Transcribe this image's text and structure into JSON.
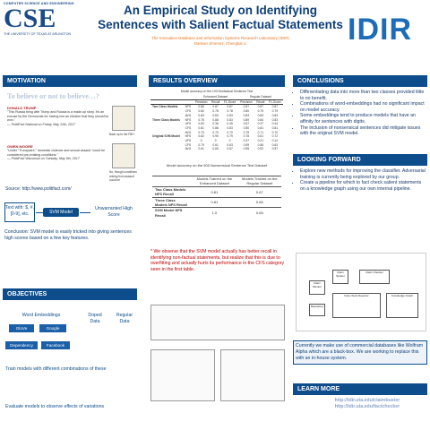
{
  "header": {
    "dept_line": "COMPUTER SCIENCE AND ENGINEERING",
    "cse_logo": "CSE",
    "univ_line": "THE UNIVERSITY OF TEXAS AT ARLINGTON",
    "title_line1": "An Empirical Study on Identifying",
    "title_line2": "Sentences with Salient Factual Statements",
    "lab": "The Innovative Database and Information Systems Research Laboratory (IDIR)",
    "authors": "Damian Jimenez, Chengkai Li",
    "idir_logo": "IDIR"
  },
  "motivation": {
    "header": "MOTIVATION",
    "big_line": "To believe or not to believe…?",
    "q1_name": "DONALD TRUMP",
    "q1_text": "\"This Russia thing with Trump and Russia is a made-up story. It's an excuse by the Democrats for having lost an election that they should've won.\"",
    "q1_src": "— PolitiFact National on Friday, May 12th, 2017",
    "q1_badge": "Back up to the FBI?",
    "q2_name": "GWEN MOORE",
    "q2_text": "\"Under \"Trumpcare,\" domestic violence and sexual assault \"could be considered pre-existing conditions.\"",
    "q2_src": "— PolitiFact Wisconsin on Tuesday, May 9th, 2017",
    "q2_badge": "No, though conditions arising from assault could be",
    "source": "Source: http://www.politifact.com/",
    "model_in": "Text with: $, #, [0-9], etc.",
    "model": "SVM Model",
    "model_out": "Unwarranted High Score",
    "conclusion": "Conclusion: SVM model is easily tricked into giving sentences high scores based on a few key features."
  },
  "objectives": {
    "header": "OBJECTIVES",
    "word_emb": "Word Embeddings",
    "glove": "GloVe",
    "google": "Google",
    "dependency": "Dependency",
    "facebook": "Facebook",
    "doped": "Doped Data",
    "regular": "Regular Data",
    "train": "Train models with different combinations of these",
    "evaluate": "Evaluate models to observe effects of variations"
  },
  "results": {
    "header": "RESULTS OVERVIEW",
    "table1_caption": "Model accuracy on the 100 Nonfactual Sentence Test",
    "table1_groups": [
      "Enhanced Dataset",
      "Regular Dataset"
    ],
    "table1_cols": [
      "Precision",
      "Recall",
      "F1-Score",
      "Precision",
      "Recall",
      "F1-Score"
    ],
    "table1_rows": [
      [
        "Two Class Models",
        "NFS",
        "0.86",
        "0.87",
        "0.87",
        "0.87",
        "0.87",
        "0.87"
      ],
      [
        "",
        "CFS",
        "0.80",
        "0.78",
        "0.78",
        "0.80",
        "0.79",
        "0.79"
      ],
      [
        "",
        "AVG",
        "0.83",
        "0.83",
        "0.83",
        "0.83",
        "0.83",
        "0.83"
      ],
      [
        "Three Class Models",
        "NFS",
        "0.78",
        "0.88",
        "0.83",
        "0.89",
        "0.84",
        "0.83"
      ],
      [
        "",
        "UFS",
        "0.60",
        "0.36",
        "0.45",
        "0.57",
        "0.37",
        "0.44"
      ],
      [
        "",
        "CFS",
        "0.81",
        "0.88",
        "0.83",
        "0.80",
        "0.81",
        "0.81"
      ],
      [
        "",
        "AVG",
        "0.73",
        "0.70",
        "0.70",
        "0.75",
        "0.71",
        "0.70"
      ],
      [
        "Original SVM Model",
        "NFS",
        "0.82",
        "0.90",
        "0.79",
        "0.78",
        "0.61",
        "0.72"
      ],
      [
        "",
        "UFS",
        "0",
        "0",
        "0",
        "0.37",
        "0.21",
        "0.14"
      ],
      [
        "",
        "CFS",
        "0.79",
        "0.61",
        "0.63",
        "0.59",
        "0.58",
        "0.63"
      ],
      [
        "",
        "AVG",
        "0.61",
        "0.65",
        "0.57",
        "0.55",
        "0.52",
        "0.57"
      ]
    ],
    "table2_caption": "Model accuracy on the 500 Nonsensical Sentence Test Dataset",
    "table2_cols": [
      "",
      "Models Trained on the Enhanced Dataset",
      "Models Trained on the Regular Dataset"
    ],
    "table2_rows": [
      [
        "Two Class Models NFS Recall",
        "0.81",
        "0.67"
      ],
      [
        "Three Class Models NFS Recall",
        "0.81",
        "0.66"
      ],
      [
        "SVM Model NFS Recall",
        "1.0",
        "0.65"
      ]
    ],
    "observation": "* We observe that the SVM model actually has better recall in identifying non-factual statements, but realize that this is due to overfitting and actually hurts its performance in the CFS category seen in the first table."
  },
  "conclusions": {
    "header": "CONCLUSIONS",
    "items": [
      "Differentiating data into more than two classes provided little to no benefit.",
      "Combinations of word-embeddings had no significant impact on model accuracy.",
      "Some embeddings tend to produce models that have an affinity for sentences with digits.",
      "The inclusion of nonsensical sentences did mitigate issues with the original SVM model."
    ]
  },
  "looking_forward": {
    "header": "LOOKING FORWARD",
    "items": [
      "Explore new methods for improving the classifier. Adversarial training is currently being explored by our group.",
      "Create a pipeline for which to fact check salient statements on a knowledge graph using our own internal pipeline."
    ],
    "diagram_labels": [
      "Claim Monitor",
      "Claim Spotter",
      "Claim Checker",
      "Fact-check Reporter",
      "Repository",
      "Knowledge Graph"
    ],
    "note": "Currently we make use of commercial databases like Wolfram Alpha which are a black-box. We are working to replace this with an in-house system."
  },
  "learn_more": {
    "header": "LEARN MORE",
    "link1": "http://idir.uta.edu/claimbuster",
    "link2": "http://idir.uta.edu/factchecker"
  },
  "colors": {
    "primary": "#0d4d8c",
    "accent": "#e87722",
    "highlight": "#c00000"
  }
}
